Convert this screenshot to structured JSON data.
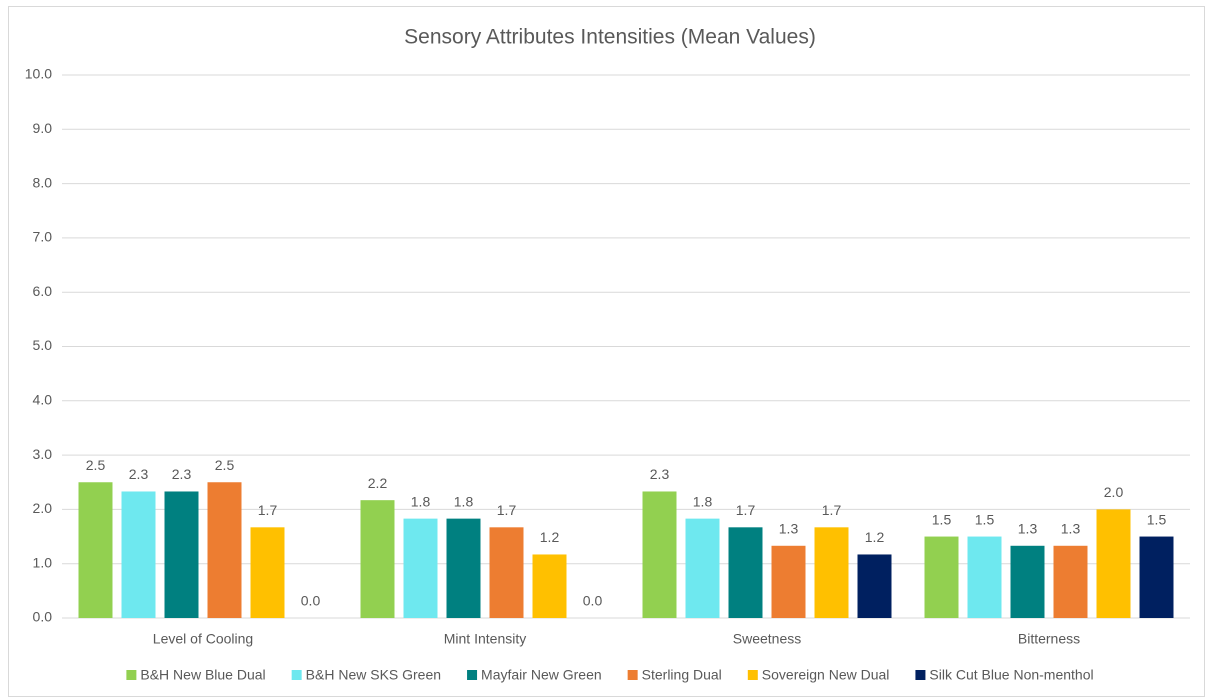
{
  "chart_data": {
    "type": "bar",
    "title": "Sensory Attributes Intensities (Mean Values)",
    "categories": [
      "Level of Cooling",
      "Mint Intensity",
      "Sweetness",
      "Bitterness"
    ],
    "series": [
      {
        "name": "B&H New Blue Dual",
        "color": "#92d050",
        "values": [
          2.5,
          2.17,
          2.33,
          1.5
        ],
        "value_labels": [
          "2.5",
          "2.2",
          "2.3",
          "1.5"
        ]
      },
      {
        "name": "B&H New SKS Green",
        "color": "#6ee8ef",
        "values": [
          2.33,
          1.83,
          1.83,
          1.5
        ],
        "value_labels": [
          "2.3",
          "1.8",
          "1.8",
          "1.5"
        ]
      },
      {
        "name": "Mayfair New Green",
        "color": "#008080",
        "values": [
          2.33,
          1.83,
          1.67,
          1.33
        ],
        "value_labels": [
          "2.3",
          "1.8",
          "1.7",
          "1.3"
        ]
      },
      {
        "name": "Sterling Dual",
        "color": "#ed7d31",
        "values": [
          2.5,
          1.67,
          1.33,
          1.33
        ],
        "value_labels": [
          "2.5",
          "1.7",
          "1.3",
          "1.3"
        ]
      },
      {
        "name": "Sovereign New Dual",
        "color": "#ffc000",
        "values": [
          1.67,
          1.17,
          1.67,
          2.0
        ],
        "value_labels": [
          "1.7",
          "1.2",
          "1.7",
          "2.0"
        ]
      },
      {
        "name": "Silk Cut Blue Non-menthol",
        "color": "#002060",
        "values": [
          0,
          0,
          1.17,
          1.5
        ],
        "value_labels": [
          "0.0",
          "0.0",
          "1.2",
          "1.5"
        ]
      }
    ],
    "ylim": [
      0,
      10
    ],
    "yticks": [
      {
        "value": 0,
        "label": "0.0"
      },
      {
        "value": 1,
        "label": "1.0"
      },
      {
        "value": 2,
        "label": "2.0"
      },
      {
        "value": 3,
        "label": "3.0"
      },
      {
        "value": 4,
        "label": "4.0"
      },
      {
        "value": 5,
        "label": "5.0"
      },
      {
        "value": 6,
        "label": "6.0"
      },
      {
        "value": 7,
        "label": "7.0"
      },
      {
        "value": 8,
        "label": "8.0"
      },
      {
        "value": 9,
        "label": "9.0"
      },
      {
        "value": 10,
        "label": "10.0"
      }
    ],
    "grid": true,
    "legend": "bottom"
  }
}
